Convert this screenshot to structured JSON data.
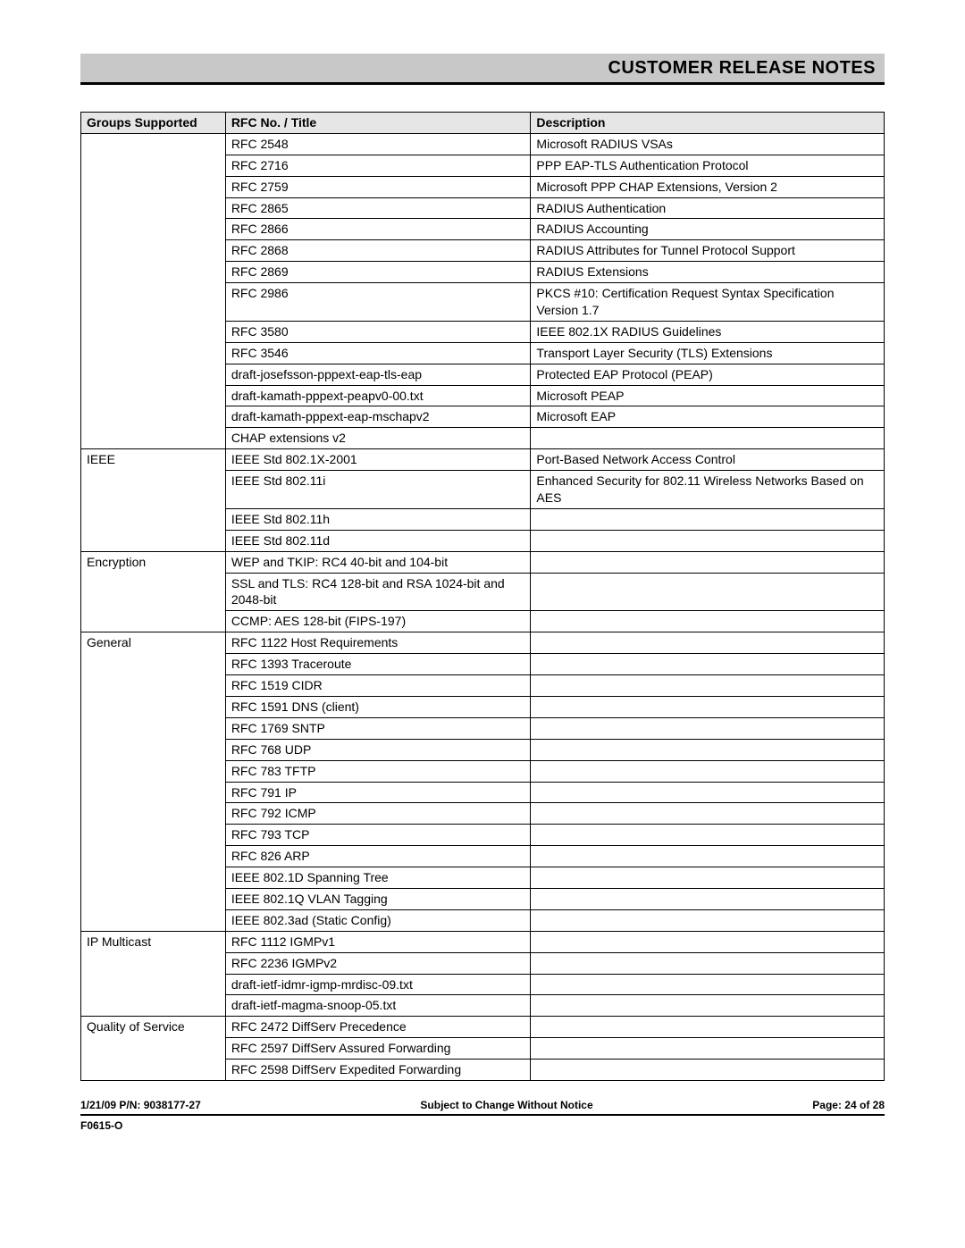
{
  "header": {
    "title": "CUSTOMER RELEASE NOTES"
  },
  "table": {
    "columns": [
      "Groups Supported",
      "RFC No. / Title",
      "Description"
    ],
    "rows": [
      {
        "group": "",
        "rfc": "RFC 2548",
        "desc": "Microsoft RADIUS VSAs"
      },
      {
        "group": "",
        "rfc": "RFC 2716",
        "desc": "PPP EAP-TLS Authentication Protocol"
      },
      {
        "group": "",
        "rfc": "RFC 2759",
        "desc": "Microsoft PPP CHAP Extensions, Version 2"
      },
      {
        "group": "",
        "rfc": "RFC 2865",
        "desc": "RADIUS Authentication"
      },
      {
        "group": "",
        "rfc": "RFC 2866",
        "desc": "RADIUS Accounting"
      },
      {
        "group": "",
        "rfc": "RFC 2868",
        "desc": "RADIUS Attributes for Tunnel Protocol Support"
      },
      {
        "group": "",
        "rfc": "RFC 2869",
        "desc": "RADIUS Extensions"
      },
      {
        "group": "",
        "rfc": "RFC 2986",
        "desc": "PKCS #10: Certification Request Syntax Specification Version 1.7"
      },
      {
        "group": "",
        "rfc": "RFC 3580",
        "desc": "IEEE 802.1X RADIUS Guidelines"
      },
      {
        "group": "",
        "rfc": "RFC 3546",
        "desc": "Transport Layer Security (TLS) Extensions"
      },
      {
        "group": "",
        "rfc": "draft-josefsson-pppext-eap-tls-eap",
        "desc": "Protected EAP Protocol (PEAP)"
      },
      {
        "group": "",
        "rfc": "draft-kamath-pppext-peapv0-00.txt",
        "desc": "Microsoft PEAP"
      },
      {
        "group": "",
        "rfc": "draft-kamath-pppext-eap-mschapv2",
        "desc": "Microsoft EAP"
      },
      {
        "group": "",
        "rfc": "CHAP extensions v2",
        "desc": ""
      },
      {
        "group": "IEEE",
        "rfc": "IEEE Std 802.1X-2001",
        "desc": "Port-Based Network Access Control"
      },
      {
        "group": "",
        "rfc": "IEEE Std 802.11i",
        "desc": "Enhanced Security for 802.11 Wireless Networks Based on AES"
      },
      {
        "group": "",
        "rfc": "IEEE Std 802.11h",
        "desc": ""
      },
      {
        "group": "",
        "rfc": "IEEE Std 802.11d",
        "desc": ""
      },
      {
        "group": "Encryption",
        "rfc": "WEP and TKIP: RC4 40-bit and 104-bit",
        "desc": ""
      },
      {
        "group": "",
        "rfc": "SSL and TLS: RC4 128-bit and RSA 1024-bit and 2048-bit",
        "desc": ""
      },
      {
        "group": "",
        "rfc": "CCMP: AES 128-bit (FIPS-197)",
        "desc": ""
      },
      {
        "group": "General",
        "rfc": "RFC 1122 Host Requirements",
        "desc": ""
      },
      {
        "group": "",
        "rfc": "RFC 1393 Traceroute",
        "desc": ""
      },
      {
        "group": "",
        "rfc": "RFC 1519 CIDR",
        "desc": ""
      },
      {
        "group": "",
        "rfc": "RFC 1591 DNS (client)",
        "desc": ""
      },
      {
        "group": "",
        "rfc": "RFC 1769 SNTP",
        "desc": ""
      },
      {
        "group": "",
        "rfc": "RFC 768 UDP",
        "desc": ""
      },
      {
        "group": "",
        "rfc": "RFC 783 TFTP",
        "desc": ""
      },
      {
        "group": "",
        "rfc": "RFC 791 IP",
        "desc": ""
      },
      {
        "group": "",
        "rfc": "RFC 792 ICMP",
        "desc": ""
      },
      {
        "group": "",
        "rfc": "RFC 793 TCP",
        "desc": ""
      },
      {
        "group": "",
        "rfc": "RFC 826 ARP",
        "desc": ""
      },
      {
        "group": "",
        "rfc": "IEEE 802.1D Spanning Tree",
        "desc": ""
      },
      {
        "group": "",
        "rfc": "IEEE 802.1Q VLAN Tagging",
        "desc": ""
      },
      {
        "group": "",
        "rfc": "IEEE 802.3ad (Static Config)",
        "desc": ""
      },
      {
        "group": "IP Multicast",
        "rfc": "RFC 1112 IGMPv1",
        "desc": ""
      },
      {
        "group": "",
        "rfc": "RFC 2236 IGMPv2",
        "desc": ""
      },
      {
        "group": "",
        "rfc": "draft-ietf-idmr-igmp-mrdisc-09.txt",
        "desc": ""
      },
      {
        "group": "",
        "rfc": "draft-ietf-magma-snoop-05.txt",
        "desc": ""
      },
      {
        "group": "Quality of Service",
        "rfc": "RFC 2472 DiffServ Precedence",
        "desc": ""
      },
      {
        "group": "",
        "rfc": "RFC 2597 DiffServ Assured Forwarding",
        "desc": ""
      },
      {
        "group": "",
        "rfc": "RFC 2598 DiffServ Expedited Forwarding",
        "desc": ""
      }
    ]
  },
  "footer": {
    "left": "1/21/09  P/N: 9038177-27",
    "center": "Subject to Change Without Notice",
    "right": "Page: 24 of 28",
    "sub": "F0615-O"
  }
}
